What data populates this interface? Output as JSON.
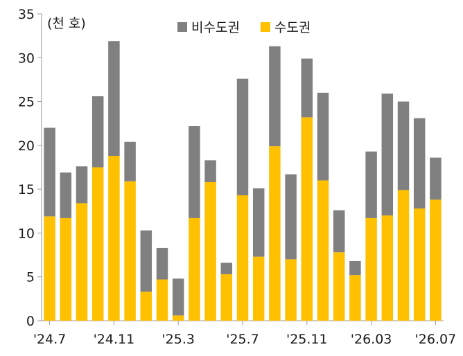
{
  "chart_data": {
    "type": "bar",
    "stacked": true,
    "unit_label": "(천 호)",
    "legend_placement": "top",
    "ylim": [
      0,
      35
    ],
    "yticks": [
      0,
      5,
      10,
      15,
      20,
      25,
      30,
      35
    ],
    "grid": false,
    "x": [
      "2024-07",
      "2024-08",
      "2024-09",
      "2024-10",
      "2024-11",
      "2024-12",
      "2025-01",
      "2025-02",
      "2025-03",
      "2025-04",
      "2025-05",
      "2025-06",
      "2025-07",
      "2025-08",
      "2025-09",
      "2025-10",
      "2025-11",
      "2025-12",
      "2026-01",
      "2026-02",
      "2026-03",
      "2026-04",
      "2026-05",
      "2026-06",
      "2026-07"
    ],
    "xtick_labels": [
      {
        "index": 0,
        "label": "'24.7"
      },
      {
        "index": 4,
        "label": "'24.11"
      },
      {
        "index": 8,
        "label": "'25.3"
      },
      {
        "index": 12,
        "label": "'25.7"
      },
      {
        "index": 16,
        "label": "'25.11"
      },
      {
        "index": 20,
        "label": "'26.03"
      },
      {
        "index": 24,
        "label": "'26.07"
      }
    ],
    "series": [
      {
        "name": "수도권",
        "color": "#FFC000",
        "values": [
          11.9,
          11.7,
          13.4,
          17.5,
          18.8,
          15.9,
          3.3,
          4.7,
          0.6,
          11.7,
          15.8,
          5.3,
          14.3,
          7.3,
          19.9,
          7.0,
          23.2,
          16.0,
          7.8,
          5.2,
          11.7,
          12.0,
          14.9,
          12.8,
          13.8
        ]
      },
      {
        "name": "비수도권",
        "color": "#808080",
        "values": [
          10.1,
          5.2,
          4.2,
          8.1,
          13.1,
          4.5,
          7.0,
          3.6,
          4.2,
          10.5,
          2.5,
          1.3,
          13.3,
          7.8,
          11.4,
          9.7,
          6.7,
          10.0,
          4.8,
          1.6,
          7.6,
          13.9,
          10.1,
          10.3,
          4.8
        ]
      }
    ]
  }
}
